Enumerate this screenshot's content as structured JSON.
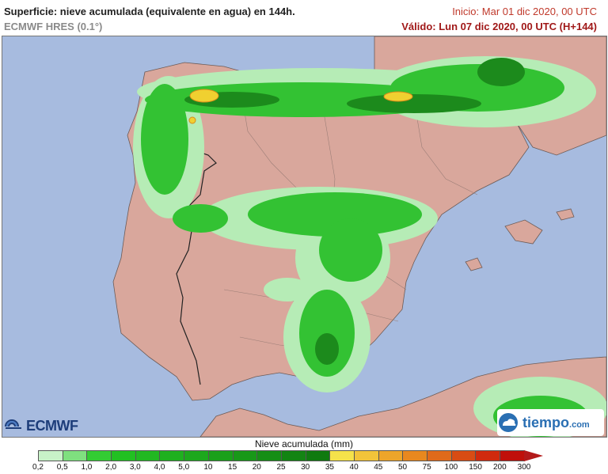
{
  "header": {
    "title": "Superficie: nieve acumulada (equivalente en agua) en 144h.",
    "model": "ECMWF HRES (0.1°)",
    "start": "Inicio: Mar 01 dic 2020, 00 UTC",
    "valid": "Válido: Lun 07 dic 2020, 00 UTC (H+144)"
  },
  "logos": {
    "ecmwf": "ECMWF",
    "tiempo_main": "tiempo",
    "tiempo_suffix": ".com"
  },
  "legend": {
    "title": "Nieve acumulada (mm)",
    "ticks": [
      "0,2",
      "0,5",
      "1,0",
      "2,0",
      "3,0",
      "4,0",
      "5,0",
      "10",
      "15",
      "20",
      "25",
      "30",
      "35",
      "40",
      "45",
      "50",
      "75",
      "100",
      "150",
      "200",
      "300"
    ],
    "colors": [
      "#c8f2c8",
      "#7fe07f",
      "#33cc33",
      "#22c022",
      "#22b822",
      "#1fb01f",
      "#1da81d",
      "#1aa01a",
      "#189818",
      "#168e16",
      "#138413",
      "#107a10",
      "#f5e24a",
      "#f2c43a",
      "#eda52a",
      "#e8881f",
      "#e06a1a",
      "#d84c14",
      "#d02a0e",
      "#c0100a",
      "#b31a1a"
    ]
  },
  "map": {
    "water_color": "#a7bbdf",
    "land_color": "#d9a79c",
    "snow_light": "#b6ecb6",
    "snow_green": "#33c233",
    "snow_dark": "#1c8a1c",
    "snow_yellow": "#f0d030"
  }
}
